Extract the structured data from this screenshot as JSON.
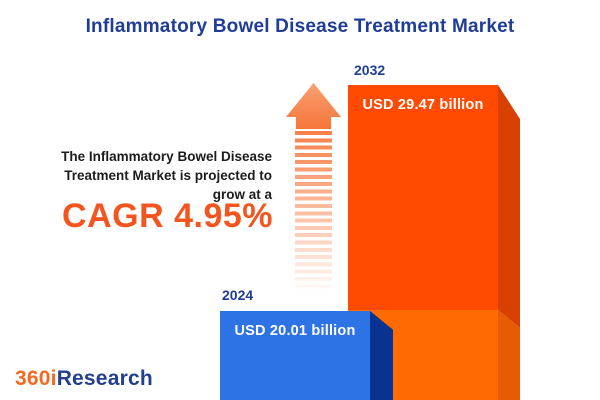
{
  "title": "Inflammatory Bowel Disease Treatment Market",
  "annotation": {
    "line1": "The Inflammatory Bowel Disease",
    "line2": "Treatment Market is projected to",
    "line3": "grow at a",
    "cagr": "CAGR 4.95%"
  },
  "bars": {
    "b2032": {
      "year": "2032",
      "value_label": "USD 29.47 billion"
    },
    "b2024": {
      "year": "2024",
      "value_label": "USD 20.01 billion"
    }
  },
  "logo": {
    "prefix": "360i",
    "suffix": "Research"
  },
  "palette": {
    "title_navy": "#1f3c96",
    "cagr_orange": "#f4551e",
    "bar_2032_front": "#ff4a00",
    "bar_2032_front_lower": "#ff6b00",
    "bar_2032_side": "#d84000",
    "bar_2032_side_lower": "#e65c02",
    "bar_2024_front": "#2e73e6",
    "bar_2024_side": "#083390",
    "arrow_orange": "#f97f48",
    "logo_orange": "#f26b21",
    "logo_blue": "#243e90",
    "text_black": "#1c1c1c",
    "value_text": "#ffffff",
    "background": "#ffffff"
  },
  "chart_data": {
    "type": "bar",
    "categories": [
      "2024",
      "2032"
    ],
    "values": [
      20.01,
      29.47
    ],
    "unit": "USD billion",
    "value_labels": [
      "USD 20.01 billion",
      "USD 29.47 billion"
    ],
    "series_colors": [
      "#2e73e6",
      "#ff4a00"
    ],
    "title": "Inflammatory Bowel Disease Treatment Market",
    "annotation": "The Inflammatory Bowel Disease Treatment Market is projected to grow at a CAGR 4.95%",
    "cagr_percent": 4.95,
    "legend": "none",
    "grid": false,
    "axes": "none",
    "style": "3d-infographic-bars"
  }
}
